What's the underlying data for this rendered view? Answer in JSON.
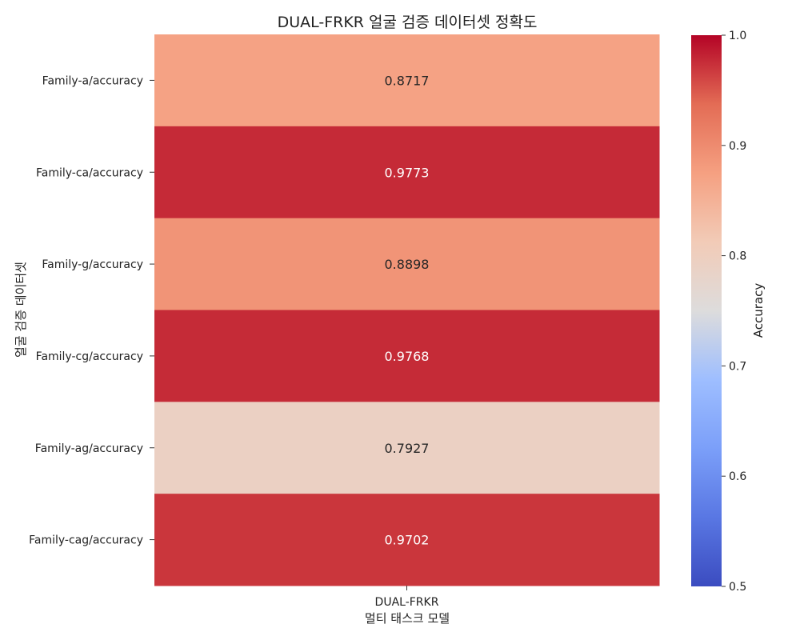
{
  "chart_data": {
    "type": "heatmap",
    "title": "DUAL-FRKR 얼굴 검증 데이터셋 정확도",
    "xlabel": "멀티 태스크 모델",
    "ylabel": "얼굴 검증 데이터셋",
    "columns": [
      "DUAL-FRKR"
    ],
    "rows": [
      "Family-a/accuracy",
      "Family-ca/accuracy",
      "Family-g/accuracy",
      "Family-cg/accuracy",
      "Family-ag/accuracy",
      "Family-cag/accuracy"
    ],
    "values": [
      [
        0.8717
      ],
      [
        0.9773
      ],
      [
        0.8898
      ],
      [
        0.9768
      ],
      [
        0.7927
      ],
      [
        0.9702
      ]
    ],
    "cell_labels": [
      [
        "0.8717"
      ],
      [
        "0.9773"
      ],
      [
        "0.8898"
      ],
      [
        "0.9768"
      ],
      [
        "0.7927"
      ],
      [
        "0.9702"
      ]
    ],
    "colormap": "coolwarm",
    "colorbar": {
      "label": "Accuracy",
      "range": [
        0.5,
        1.0
      ],
      "ticks": [
        "0.5",
        "0.6",
        "0.7",
        "0.8",
        "0.9",
        "1.0"
      ]
    }
  }
}
